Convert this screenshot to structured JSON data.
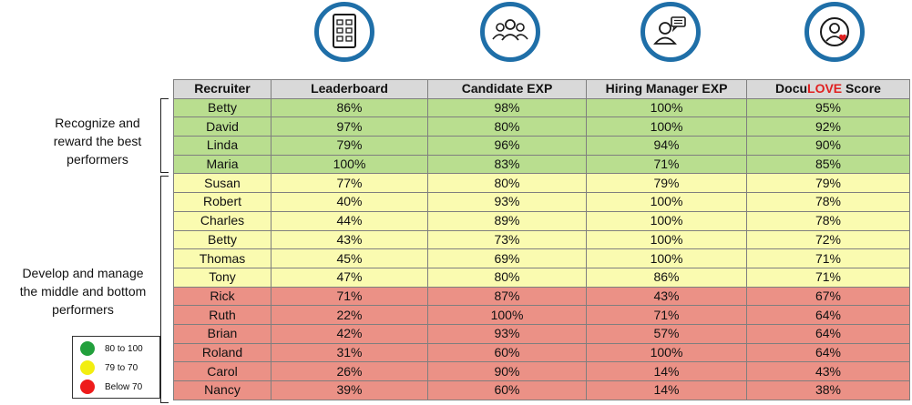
{
  "chart_data": {
    "type": "table",
    "columns": [
      "Recruiter",
      "Leaderboard",
      "Candidate EXP",
      "Hiring Manager EXP",
      "DocuLOVE Score"
    ],
    "score_header": {
      "prefix": "Docu",
      "highlight": "LOVE",
      "suffix": " Score"
    },
    "rows": [
      {
        "band": "green",
        "cells": [
          "Betty",
          "86%",
          "98%",
          "100%",
          "95%"
        ]
      },
      {
        "band": "green",
        "cells": [
          "David",
          "97%",
          "80%",
          "100%",
          "92%"
        ]
      },
      {
        "band": "green",
        "cells": [
          "Linda",
          "79%",
          "96%",
          "94%",
          "90%"
        ]
      },
      {
        "band": "green",
        "cells": [
          "Maria",
          "100%",
          "83%",
          "71%",
          "85%"
        ]
      },
      {
        "band": "yellow",
        "cells": [
          "Susan",
          "77%",
          "80%",
          "79%",
          "79%"
        ]
      },
      {
        "band": "yellow",
        "cells": [
          "Robert",
          "40%",
          "93%",
          "100%",
          "78%"
        ]
      },
      {
        "band": "yellow",
        "cells": [
          "Charles",
          "44%",
          "89%",
          "100%",
          "78%"
        ]
      },
      {
        "band": "yellow",
        "cells": [
          "Betty",
          "43%",
          "73%",
          "100%",
          "72%"
        ]
      },
      {
        "band": "yellow",
        "cells": [
          "Thomas",
          "45%",
          "69%",
          "100%",
          "71%"
        ]
      },
      {
        "band": "yellow",
        "cells": [
          "Tony",
          "47%",
          "80%",
          "86%",
          "71%"
        ]
      },
      {
        "band": "red",
        "cells": [
          "Rick",
          "71%",
          "87%",
          "43%",
          "67%"
        ]
      },
      {
        "band": "red",
        "cells": [
          "Ruth",
          "22%",
          "100%",
          "71%",
          "64%"
        ]
      },
      {
        "band": "red",
        "cells": [
          "Brian",
          "42%",
          "93%",
          "57%",
          "64%"
        ]
      },
      {
        "band": "red",
        "cells": [
          "Roland",
          "31%",
          "60%",
          "100%",
          "64%"
        ]
      },
      {
        "band": "red",
        "cells": [
          "Carol",
          "26%",
          "90%",
          "14%",
          "43%"
        ]
      },
      {
        "band": "red",
        "cells": [
          "Nancy",
          "39%",
          "60%",
          "14%",
          "38%"
        ]
      }
    ]
  },
  "icons": [
    "leaderboard-icon",
    "candidate-group-icon",
    "hiring-manager-chat-icon",
    "user-heart-icon"
  ],
  "groups": {
    "top": [
      "Recognize and",
      "reward the best",
      "performers"
    ],
    "bottom": [
      "Develop and manage",
      "the middle and bottom",
      "performers"
    ]
  },
  "legend": [
    {
      "label": "80 to 100",
      "color": "#22a03c"
    },
    {
      "label": "79 to 70",
      "color": "#f2ee10"
    },
    {
      "label": "Below 70",
      "color": "#ee1b1b"
    }
  ],
  "colors": {
    "accent": "#1f6fa8",
    "band_green": "#b9de8f",
    "band_yellow": "#fafbb0",
    "band_red": "#eb9186",
    "header_bg": "#d9d9d9",
    "love": "#e02020"
  }
}
